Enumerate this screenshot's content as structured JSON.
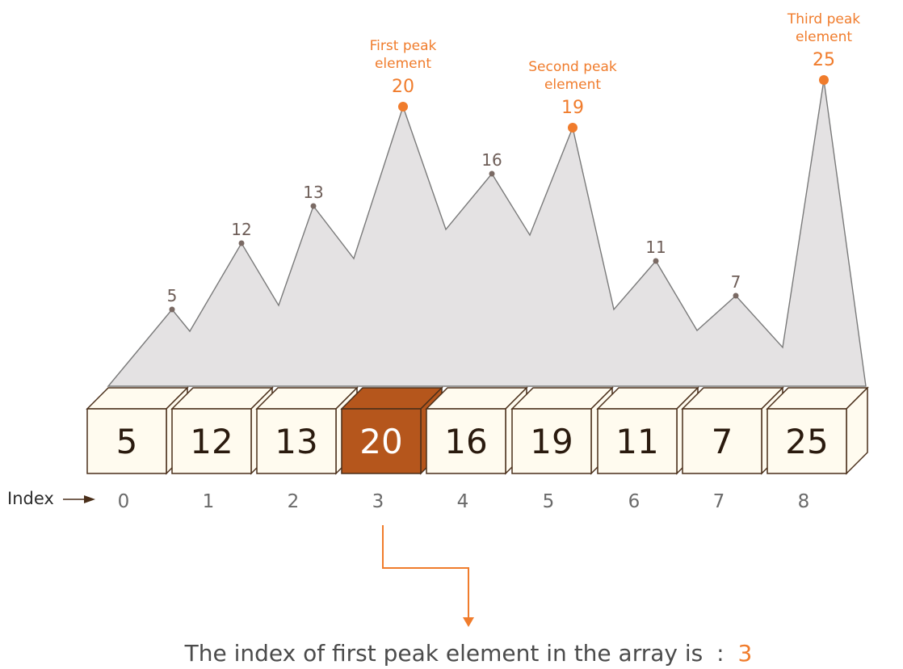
{
  "array": {
    "values": [
      5,
      12,
      13,
      20,
      16,
      19,
      11,
      7,
      25
    ],
    "indices": [
      "0",
      "1",
      "2",
      "3",
      "4",
      "5",
      "6",
      "7",
      "8"
    ],
    "highlight_index": 3
  },
  "index_label": "Index",
  "peaks": [
    {
      "array_index": 3,
      "label_lines": [
        "First peak",
        "element"
      ],
      "value": "20"
    },
    {
      "array_index": 5,
      "label_lines": [
        "Second peak",
        "element"
      ],
      "value": "19"
    },
    {
      "array_index": 8,
      "label_lines": [
        "Third peak",
        "element"
      ],
      "value": "25"
    }
  ],
  "point_labels": [
    {
      "array_index": 0,
      "value": "5"
    },
    {
      "array_index": 1,
      "value": "12"
    },
    {
      "array_index": 2,
      "value": "13"
    },
    {
      "array_index": 4,
      "value": "16"
    },
    {
      "array_index": 6,
      "value": "11"
    },
    {
      "array_index": 7,
      "value": "7"
    }
  ],
  "result": {
    "text": "The index of first peak element in the array is",
    "separator": ":",
    "value": "3"
  },
  "colors": {
    "accent": "#f07c2c",
    "highlight_fill": "#b5561c",
    "box_fill": "#fffbef",
    "box_stroke": "#4a2f1a",
    "mountain_fill": "#e4e2e3",
    "mountain_stroke": "#7a7a7a",
    "point_color": "#7a6a64"
  }
}
